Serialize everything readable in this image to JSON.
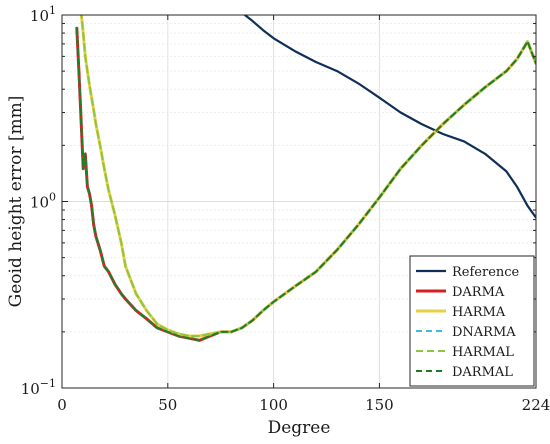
{
  "chart_data": {
    "type": "line",
    "title": "",
    "xlabel": "Degree",
    "ylabel": "Geoid height error [mm]",
    "xlim": [
      0,
      224
    ],
    "ylim": [
      0.1,
      10
    ],
    "yscale": "log",
    "grid": true,
    "x_ticks": [
      {
        "value": 0,
        "label": "0"
      },
      {
        "value": 50,
        "label": "50"
      },
      {
        "value": 100,
        "label": "100"
      },
      {
        "value": 150,
        "label": "150"
      },
      {
        "value": 224,
        "label": "224"
      }
    ],
    "y_ticks": [
      {
        "value": 0.1,
        "base": "10",
        "exp": "−1"
      },
      {
        "value": 1,
        "base": "10",
        "exp": "0"
      },
      {
        "value": 10,
        "base": "10",
        "exp": "1"
      }
    ],
    "legend_position": "bottom-right",
    "series": [
      {
        "name": "Reference",
        "color": "#0f2f57",
        "width": 2.2,
        "dash": "",
        "x": [
          84,
          90,
          95,
          100,
          110,
          120,
          130,
          140,
          150,
          160,
          170,
          180,
          190,
          200,
          210,
          215,
          220,
          224
        ],
        "y": [
          10.5,
          9.3,
          8.3,
          7.5,
          6.4,
          5.6,
          5.0,
          4.3,
          3.6,
          3.0,
          2.6,
          2.3,
          2.1,
          1.8,
          1.45,
          1.2,
          0.95,
          0.82
        ]
      },
      {
        "name": "DARMA",
        "color": "#d42020",
        "width": 3,
        "dash": "",
        "x": [
          7,
          8,
          9,
          10,
          11,
          12,
          13,
          14,
          15,
          16,
          18,
          20,
          22,
          25,
          28,
          30,
          35,
          40,
          45,
          50,
          55,
          60,
          65,
          70,
          75,
          80,
          85,
          90,
          95,
          100,
          110,
          120,
          130,
          140,
          150,
          160,
          170,
          180,
          190,
          200,
          210,
          215,
          220,
          224
        ],
        "y": [
          8.5,
          5.0,
          2.8,
          1.5,
          1.8,
          1.2,
          1.1,
          0.95,
          0.75,
          0.65,
          0.55,
          0.45,
          0.42,
          0.36,
          0.32,
          0.3,
          0.26,
          0.235,
          0.21,
          0.2,
          0.19,
          0.185,
          0.18,
          0.19,
          0.2,
          0.2,
          0.21,
          0.23,
          0.26,
          0.29,
          0.35,
          0.42,
          0.55,
          0.75,
          1.05,
          1.5,
          2.0,
          2.6,
          3.3,
          4.1,
          5.0,
          5.8,
          7.2,
          5.5
        ]
      },
      {
        "name": "HARMA",
        "color": "#e8cf45",
        "width": 3,
        "dash": "",
        "x": [
          9,
          10,
          11,
          12,
          13,
          14,
          15,
          16,
          18,
          20,
          22,
          25,
          28,
          30,
          35,
          40,
          45,
          50,
          55,
          60,
          65,
          70,
          75,
          80,
          85,
          90,
          95,
          100,
          110,
          120,
          130,
          140,
          150,
          160,
          170,
          180,
          190,
          200,
          210,
          215,
          220,
          224
        ],
        "y": [
          10.5,
          8.0,
          6.0,
          5.0,
          4.2,
          3.6,
          3.1,
          2.6,
          2.0,
          1.5,
          1.15,
          0.85,
          0.6,
          0.45,
          0.32,
          0.26,
          0.22,
          0.205,
          0.195,
          0.19,
          0.19,
          0.195,
          0.2,
          0.2,
          0.21,
          0.23,
          0.26,
          0.29,
          0.35,
          0.42,
          0.55,
          0.75,
          1.05,
          1.5,
          2.0,
          2.6,
          3.3,
          4.1,
          5.0,
          5.8,
          7.2,
          5.5
        ]
      },
      {
        "name": "DNARMA",
        "color": "#3fb8e6",
        "width": 2,
        "dash": "6,4",
        "x": [
          7,
          8,
          9,
          10,
          11,
          12,
          13,
          14,
          15,
          16,
          18,
          20,
          22,
          25,
          28,
          30,
          35,
          40,
          45,
          50,
          55,
          60,
          65,
          70,
          75,
          80,
          85,
          90,
          95,
          100,
          110,
          120,
          130,
          140,
          150,
          160,
          170,
          180,
          190,
          200,
          210,
          215,
          220,
          224
        ],
        "y": [
          8.5,
          5.0,
          2.8,
          1.5,
          1.8,
          1.2,
          1.1,
          0.95,
          0.75,
          0.65,
          0.55,
          0.45,
          0.42,
          0.36,
          0.32,
          0.3,
          0.26,
          0.235,
          0.21,
          0.2,
          0.19,
          0.185,
          0.18,
          0.19,
          0.2,
          0.2,
          0.21,
          0.23,
          0.26,
          0.29,
          0.35,
          0.42,
          0.55,
          0.75,
          1.05,
          1.5,
          2.0,
          2.6,
          3.3,
          4.1,
          5.0,
          5.8,
          7.2,
          5.5
        ]
      },
      {
        "name": "HARMAL",
        "color": "#8cc63f",
        "width": 2,
        "dash": "7,4",
        "x": [
          9,
          10,
          11,
          12,
          13,
          14,
          15,
          16,
          18,
          20,
          22,
          25,
          28,
          30,
          35,
          40,
          45,
          50,
          55,
          60,
          65,
          70,
          75,
          80,
          85,
          90,
          95,
          100,
          110,
          120,
          130,
          140,
          150,
          160,
          170,
          180,
          190,
          200,
          210,
          215,
          220,
          224
        ],
        "y": [
          10.5,
          8.0,
          6.0,
          5.0,
          4.2,
          3.6,
          3.1,
          2.6,
          2.0,
          1.5,
          1.15,
          0.85,
          0.6,
          0.45,
          0.32,
          0.26,
          0.22,
          0.205,
          0.195,
          0.19,
          0.19,
          0.195,
          0.2,
          0.2,
          0.21,
          0.23,
          0.26,
          0.29,
          0.35,
          0.42,
          0.55,
          0.75,
          1.05,
          1.5,
          2.0,
          2.6,
          3.3,
          4.1,
          5.0,
          5.8,
          7.2,
          5.5
        ]
      },
      {
        "name": "DARMAL",
        "color": "#1e7d1e",
        "width": 2,
        "dash": "6,4",
        "x": [
          7,
          8,
          9,
          10,
          11,
          12,
          13,
          14,
          15,
          16,
          18,
          20,
          22,
          25,
          28,
          30,
          35,
          40,
          45,
          50,
          55,
          60,
          65,
          70,
          75,
          80,
          85,
          90,
          95,
          100,
          110,
          120,
          130,
          140,
          150,
          160,
          170,
          180,
          190,
          200,
          210,
          215,
          220,
          224
        ],
        "y": [
          8.5,
          5.0,
          2.8,
          1.5,
          1.8,
          1.2,
          1.1,
          0.95,
          0.75,
          0.65,
          0.55,
          0.45,
          0.42,
          0.36,
          0.32,
          0.3,
          0.26,
          0.235,
          0.21,
          0.2,
          0.19,
          0.185,
          0.18,
          0.19,
          0.2,
          0.2,
          0.21,
          0.23,
          0.26,
          0.29,
          0.35,
          0.42,
          0.55,
          0.75,
          1.05,
          1.5,
          2.0,
          2.6,
          3.3,
          4.1,
          5.0,
          5.8,
          7.2,
          5.5
        ]
      }
    ]
  }
}
